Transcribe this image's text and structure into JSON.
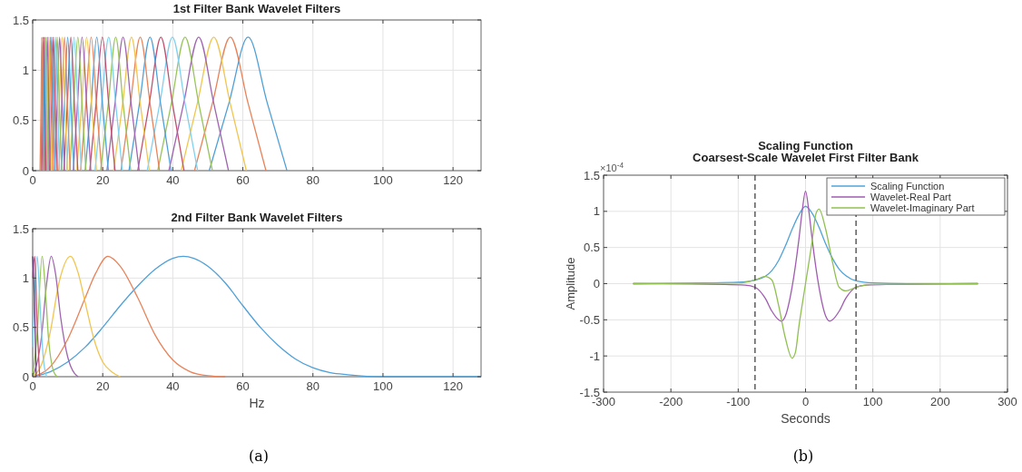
{
  "chart_data": [
    {
      "type": "line",
      "title": "1st Filter Bank Wavelet Filters",
      "xlim": [
        0,
        128
      ],
      "ylim": [
        0,
        1.5
      ],
      "xticks": [
        0,
        20,
        40,
        60,
        80,
        100,
        120
      ],
      "yticks": [
        0,
        0.5,
        1,
        1.5
      ],
      "grid": true,
      "series": [
        {
          "color": "#4fa0d8",
          "x": [
            50.4,
            56.0,
            61.5,
            67.0,
            72.6
          ],
          "values": [
            0,
            0.67,
            1.33,
            0.67,
            0
          ]
        },
        {
          "color": "#e8835a",
          "x": [
            46.2,
            51.3,
            56.4,
            61.5,
            66.6
          ],
          "values": [
            0,
            0.67,
            1.33,
            0.67,
            0
          ]
        },
        {
          "color": "#f0c550",
          "x": [
            42.4,
            47.0,
            51.7,
            56.4,
            61.0
          ],
          "values": [
            0,
            0.67,
            1.33,
            0.67,
            0
          ]
        },
        {
          "color": "#a065b0",
          "x": [
            38.9,
            43.1,
            47.4,
            51.7,
            55.9
          ],
          "values": [
            0,
            0.67,
            1.33,
            0.67,
            0
          ]
        },
        {
          "color": "#98c45a",
          "x": [
            35.7,
            39.6,
            43.5,
            47.4,
            51.3
          ],
          "values": [
            0,
            0.67,
            1.33,
            0.67,
            0
          ]
        },
        {
          "color": "#7fd0f0",
          "x": [
            32.7,
            36.3,
            39.9,
            43.5,
            47.1
          ],
          "values": [
            0,
            0.67,
            1.33,
            0.67,
            0
          ]
        },
        {
          "color": "#c05070",
          "x": [
            30.0,
            33.3,
            36.6,
            39.9,
            43.2
          ],
          "values": [
            0,
            0.67,
            1.33,
            0.67,
            0
          ]
        },
        {
          "color": "#4fa0d8",
          "x": [
            27.5,
            30.5,
            33.5,
            36.5,
            39.5
          ],
          "values": [
            0,
            0.67,
            1.33,
            0.67,
            0
          ]
        },
        {
          "color": "#e8835a",
          "x": [
            25.2,
            27.9,
            30.7,
            33.5,
            36.2
          ],
          "values": [
            0,
            0.67,
            1.33,
            0.67,
            0
          ]
        },
        {
          "color": "#f0c550",
          "x": [
            23.1,
            25.7,
            28.2,
            30.7,
            33.3
          ],
          "values": [
            0,
            0.67,
            1.33,
            0.67,
            0
          ]
        },
        {
          "color": "#a065b0",
          "x": [
            21.2,
            23.5,
            25.8,
            28.1,
            30.4
          ],
          "values": [
            0,
            0.67,
            1.33,
            0.67,
            0
          ]
        },
        {
          "color": "#98c45a",
          "x": [
            19.4,
            21.6,
            23.7,
            25.8,
            28.0
          ],
          "values": [
            0,
            0.67,
            1.33,
            0.67,
            0
          ]
        },
        {
          "color": "#7fd0f0",
          "x": [
            17.8,
            19.7,
            21.7,
            23.7,
            25.6
          ],
          "values": [
            0,
            0.67,
            1.33,
            0.67,
            0
          ]
        },
        {
          "color": "#c05070",
          "x": [
            16.3,
            18.1,
            19.9,
            21.7,
            23.5
          ],
          "values": [
            0,
            0.67,
            1.33,
            0.67,
            0
          ]
        },
        {
          "color": "#4fa0d8",
          "x": [
            15.0,
            16.7,
            18.3,
            19.9,
            21.6
          ],
          "values": [
            0,
            0.67,
            1.33,
            0.67,
            0
          ]
        },
        {
          "color": "#e8835a",
          "x": [
            13.7,
            15.2,
            16.7,
            18.2,
            19.7
          ],
          "values": [
            0,
            0.67,
            1.33,
            0.67,
            0
          ]
        },
        {
          "color": "#f0c550",
          "x": [
            12.6,
            14.0,
            15.4,
            16.8,
            18.2
          ],
          "values": [
            0,
            0.67,
            1.33,
            0.67,
            0
          ]
        },
        {
          "color": "#a065b0",
          "x": [
            11.6,
            12.8,
            14.1,
            15.4,
            16.6
          ],
          "values": [
            0,
            0.67,
            1.33,
            0.67,
            0
          ]
        },
        {
          "color": "#98c45a",
          "x": [
            10.6,
            11.7,
            12.9,
            14.1,
            15.2
          ],
          "values": [
            0,
            0.67,
            1.33,
            0.67,
            0
          ]
        },
        {
          "color": "#7fd0f0",
          "x": [
            9.7,
            10.7,
            11.8,
            12.9,
            13.9
          ],
          "values": [
            0,
            0.67,
            1.33,
            0.67,
            0
          ]
        },
        {
          "color": "#c05070",
          "x": [
            8.9,
            9.9,
            10.9,
            11.9,
            12.9
          ],
          "values": [
            0,
            0.67,
            1.33,
            0.67,
            0
          ]
        },
        {
          "color": "#4fa0d8",
          "x": [
            8.2,
            9.1,
            10.0,
            10.9,
            11.8
          ],
          "values": [
            0,
            0.67,
            1.33,
            0.67,
            0
          ]
        },
        {
          "color": "#e8835a",
          "x": [
            7.5,
            8.3,
            9.1,
            9.9,
            10.7
          ],
          "values": [
            0,
            0.67,
            1.33,
            0.67,
            0
          ]
        },
        {
          "color": "#f0c550",
          "x": [
            6.9,
            7.6,
            8.4,
            9.2,
            9.9
          ],
          "values": [
            0,
            0.67,
            1.33,
            0.67,
            0
          ]
        },
        {
          "color": "#a065b0",
          "x": [
            6.3,
            7.0,
            7.7,
            8.4,
            9.1
          ],
          "values": [
            0,
            0.67,
            1.33,
            0.67,
            0
          ]
        },
        {
          "color": "#98c45a",
          "x": [
            5.7,
            6.4,
            7.0,
            7.6,
            8.3
          ],
          "values": [
            0,
            0.67,
            1.33,
            0.67,
            0
          ]
        },
        {
          "color": "#7fd0f0",
          "x": [
            5.3,
            5.9,
            6.5,
            7.1,
            7.7
          ],
          "values": [
            0,
            0.67,
            1.33,
            0.67,
            0
          ]
        },
        {
          "color": "#c05070",
          "x": [
            4.8,
            5.4,
            5.9,
            6.4,
            7.0
          ],
          "values": [
            0,
            0.67,
            1.33,
            0.67,
            0
          ]
        },
        {
          "color": "#4fa0d8",
          "x": [
            4.4,
            4.9,
            5.4,
            5.9,
            6.4
          ],
          "values": [
            0,
            0.67,
            1.33,
            0.67,
            0
          ]
        },
        {
          "color": "#e8835a",
          "x": [
            4.1,
            4.6,
            5.0,
            5.5,
            5.9
          ],
          "values": [
            0,
            0.67,
            1.33,
            0.67,
            0
          ]
        },
        {
          "color": "#f0c550",
          "x": [
            3.8,
            4.2,
            4.6,
            5.0,
            5.4
          ],
          "values": [
            0,
            0.67,
            1.33,
            0.67,
            0
          ]
        },
        {
          "color": "#a065b0",
          "x": [
            3.4,
            3.8,
            4.2,
            4.6,
            5.0
          ],
          "values": [
            0,
            0.67,
            1.33,
            0.67,
            0
          ]
        },
        {
          "color": "#98c45a",
          "x": [
            3.1,
            3.5,
            3.8,
            4.1,
            4.5
          ],
          "values": [
            0,
            0.67,
            1.33,
            0.67,
            0
          ]
        },
        {
          "color": "#7fd0f0",
          "x": [
            2.9,
            3.2,
            3.5,
            3.8,
            4.1
          ],
          "values": [
            0,
            0.67,
            1.33,
            0.67,
            0
          ]
        },
        {
          "color": "#c05070",
          "x": [
            2.6,
            2.9,
            3.2,
            3.5,
            3.8
          ],
          "values": [
            0,
            0.67,
            1.33,
            0.67,
            0
          ]
        },
        {
          "color": "#4fa0d8",
          "x": [
            2.4,
            2.6,
            2.9,
            3.2,
            3.4
          ],
          "values": [
            0,
            0.67,
            1.33,
            0.67,
            0
          ]
        },
        {
          "color": "#e8835a",
          "x": [
            2.1,
            2.4,
            2.6,
            2.8,
            3.1
          ],
          "values": [
            0,
            0.67,
            1.33,
            0.67,
            0
          ]
        }
      ]
    },
    {
      "type": "line",
      "title": "2nd Filter Bank Wavelet Filters",
      "xlabel": "Hz",
      "xlim": [
        0,
        128
      ],
      "ylim": [
        0,
        1.5
      ],
      "xticks": [
        0,
        20,
        40,
        60,
        80,
        100,
        120
      ],
      "yticks": [
        0,
        0.5,
        1,
        1.5
      ],
      "grid": true,
      "annotations": [
        "(a)"
      ],
      "series": [
        {
          "color": "#4fa0d8",
          "x": [
            0,
            5,
            10,
            15,
            20,
            25,
            30,
            35,
            40,
            43,
            46,
            50,
            55,
            60,
            65,
            70,
            75,
            80,
            85,
            90,
            100,
            128
          ],
          "values": [
            0,
            0.05,
            0.15,
            0.3,
            0.5,
            0.72,
            0.92,
            1.09,
            1.2,
            1.22,
            1.2,
            1.12,
            0.95,
            0.72,
            0.5,
            0.32,
            0.18,
            0.09,
            0.04,
            0.02,
            0,
            0
          ]
        },
        {
          "color": "#e8835a",
          "x": [
            0,
            5,
            10,
            15,
            18,
            21.5,
            25,
            30,
            35,
            40,
            45,
            50,
            55
          ],
          "values": [
            0,
            0.1,
            0.38,
            0.8,
            1.05,
            1.22,
            1.12,
            0.8,
            0.42,
            0.17,
            0.05,
            0.01,
            0
          ]
        },
        {
          "color": "#f0c550",
          "x": [
            0,
            2.5,
            5,
            7.5,
            10.8,
            13,
            15,
            17.5,
            20,
            22.5,
            25
          ],
          "values": [
            0,
            0.12,
            0.45,
            0.95,
            1.22,
            1.05,
            0.75,
            0.38,
            0.15,
            0.05,
            0
          ]
        },
        {
          "color": "#a065b0",
          "x": [
            0,
            2.5,
            4,
            5.3,
            6.5,
            8,
            10,
            12,
            13
          ],
          "values": [
            0,
            0.4,
            0.95,
            1.22,
            1.05,
            0.6,
            0.2,
            0.03,
            0
          ]
        },
        {
          "color": "#98c45a",
          "x": [
            0,
            1.3,
            2.7,
            3.5,
            4.5,
            6,
            7
          ],
          "values": [
            0,
            0.45,
            1.22,
            0.95,
            0.4,
            0.05,
            0
          ]
        },
        {
          "color": "#7fd0f0",
          "x": [
            0,
            0.6,
            1.3,
            2,
            3,
            4
          ],
          "values": [
            0.3,
            0.9,
            1.22,
            0.8,
            0.2,
            0
          ]
        },
        {
          "color": "#c05070",
          "x": [
            0,
            0.6,
            1.2,
            2
          ],
          "values": [
            1.0,
            1.22,
            0.6,
            0
          ]
        },
        {
          "color": "#6a3d80",
          "x": [
            0,
            0.5,
            1
          ],
          "values": [
            1.22,
            0.8,
            0
          ]
        }
      ]
    },
    {
      "type": "line",
      "title": "Scaling Function",
      "subtitle": "Coarsest-Scale Wavelet First Filter Bank",
      "xlabel": "Seconds",
      "ylabel": "Amplitude",
      "xlim": [
        -300,
        300
      ],
      "ylim": [
        -1.5,
        1.5
      ],
      "xticks": [
        -300,
        -200,
        -100,
        0,
        100,
        200,
        300
      ],
      "yticks": [
        -1.5,
        -1,
        -0.5,
        0,
        0.5,
        1,
        1.5
      ],
      "grid": true,
      "legend": "top right",
      "annotations": [
        "×10$^{-4}$",
        "(b)"
      ],
      "ref_lines": [
        {
          "axis": "x",
          "value": -75,
          "color": "#333333",
          "line_style": "dashed"
        },
        {
          "axis": "x",
          "value": 75,
          "color": "#333333",
          "line_style": "dashed"
        }
      ],
      "series": [
        {
          "name": "Scaling Function",
          "color": "#4fa3d8",
          "x": [
            -256,
            -150,
            -100,
            -75,
            -60,
            -50,
            -40,
            -30,
            -20,
            -10,
            0,
            10,
            20,
            30,
            40,
            50,
            60,
            75,
            100,
            150,
            256
          ],
          "values": [
            0,
            0.01,
            0.02,
            0.05,
            0.1,
            0.18,
            0.32,
            0.52,
            0.75,
            0.95,
            1.07,
            0.97,
            0.78,
            0.55,
            0.35,
            0.2,
            0.11,
            0.04,
            0.01,
            0,
            0
          ]
        },
        {
          "name": "Wavelet-Real Part",
          "color": "#a05cb0",
          "x": [
            -256,
            -120,
            -90,
            -75,
            -60,
            -50,
            -40,
            -36,
            -30,
            -20,
            -10,
            -5,
            0,
            5,
            10,
            20,
            30,
            36,
            40,
            50,
            60,
            75,
            90,
            120,
            256
          ],
          "values": [
            0,
            -0.01,
            -0.02,
            -0.05,
            -0.2,
            -0.38,
            -0.5,
            -0.52,
            -0.45,
            -0.05,
            0.6,
            1.0,
            1.28,
            1.0,
            0.6,
            -0.05,
            -0.45,
            -0.52,
            -0.5,
            -0.38,
            -0.2,
            -0.05,
            -0.02,
            -0.01,
            0
          ]
        },
        {
          "name": "Wavelet-Imaginary Part",
          "color": "#90c050",
          "x": [
            -256,
            -100,
            -75,
            -60,
            -50,
            -40,
            -30,
            -20,
            -15,
            -10,
            0,
            10,
            15,
            20,
            30,
            40,
            50,
            60,
            75,
            100,
            256
          ],
          "values": [
            0,
            0.01,
            0.05,
            0.1,
            0.05,
            -0.3,
            -0.75,
            -1.03,
            -0.95,
            -0.6,
            0,
            0.6,
            0.95,
            1.03,
            0.75,
            0.3,
            -0.05,
            -0.1,
            -0.05,
            -0.01,
            0
          ]
        }
      ]
    }
  ]
}
